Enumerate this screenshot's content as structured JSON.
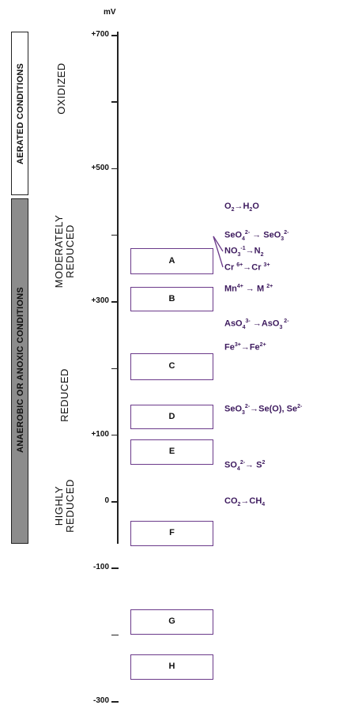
{
  "axis": {
    "unit": "mV",
    "ticks": [
      {
        "value": 700,
        "label": "+700"
      },
      {
        "value": 600,
        "label": ""
      },
      {
        "value": 500,
        "label": "+500"
      },
      {
        "value": 400,
        "label": ""
      },
      {
        "value": 300,
        "label": "+300"
      },
      {
        "value": 200,
        "label": ""
      },
      {
        "value": 100,
        "label": "+100"
      },
      {
        "value": 0,
        "label": "0"
      },
      {
        "value": -100,
        "label": "-100"
      },
      {
        "value": -200,
        "label": ""
      },
      {
        "value": -300,
        "label": "-300"
      }
    ]
  },
  "conditions": {
    "aerated": "AERATED CONDITIONS",
    "anaerobic": "ANAEROBIC OR ANOXIC CONDITIONS"
  },
  "zones": {
    "oxidized": "OXIDIZED",
    "moderately_line1": "MODERATELY",
    "moderately_line2": "REDUCED",
    "reduced": "REDUCED",
    "highly_line1": "HIGHLY",
    "highly_line2": "REDUCED"
  },
  "boxes": [
    {
      "letter": "A",
      "top_mv": 380,
      "bottom_mv": 340
    },
    {
      "letter": "B",
      "top_mv": 322,
      "bottom_mv": 285
    },
    {
      "letter": "C",
      "top_mv": 222,
      "bottom_mv": 182
    },
    {
      "letter": "D",
      "top_mv": 145,
      "bottom_mv": 108
    },
    {
      "letter": "E",
      "top_mv": 93,
      "bottom_mv": 55
    },
    {
      "letter": "F",
      "top_mv": -30,
      "bottom_mv": -68
    },
    {
      "letter": "G",
      "top_mv": -162,
      "bottom_mv": -200
    },
    {
      "letter": "H",
      "top_mv": -230,
      "bottom_mv": -268
    }
  ],
  "reactions": {
    "a": {
      "t1": "O",
      "s1": "2",
      "arrow": "→",
      "t2": "H",
      "s2": "2",
      "t3": "O"
    },
    "b1": {
      "t1": "SeO",
      "s1": "4",
      "p1": "2-",
      "arrow": " → ",
      "t2": "SeO",
      "s2": "3",
      "p2": "2-"
    },
    "b2": {
      "t1": "NO",
      "s1": "3",
      "p1": "-1",
      "arrow": "→",
      "t2": "N",
      "s2": "2"
    },
    "b3": {
      "t1": "Cr ",
      "p1": "6+",
      "arrow": "→",
      "t2": "Cr ",
      "p2": "3+"
    },
    "c": {
      "t1": "Mn",
      "p1": "4+",
      "arrow": " → ",
      "t2": "M ",
      "p2": "2+"
    },
    "d": {
      "t1": "AsO",
      "s1": "4",
      "p1": "3-",
      "arrow": " →",
      "t2": "AsO",
      "s2": "3",
      "p2": " 2-"
    },
    "e": {
      "t1": "Fe",
      "p1": "3+",
      "arrow": "→",
      "t2": "Fe",
      "p2": "2+"
    },
    "f": {
      "t1": "SeO",
      "s1": "3",
      "p1": "2-",
      "arrow": "→",
      "t2": "Se(O), Se",
      "p2": "2-"
    },
    "g": {
      "t1": "SO",
      "s1": "4",
      "p1": "2-",
      "arrow": "→ ",
      "t2": "S",
      "p2": "2"
    },
    "h": {
      "t1": "CO",
      "s1": "2",
      "arrow": "→",
      "t2": "CH",
      "s2": "4"
    }
  }
}
